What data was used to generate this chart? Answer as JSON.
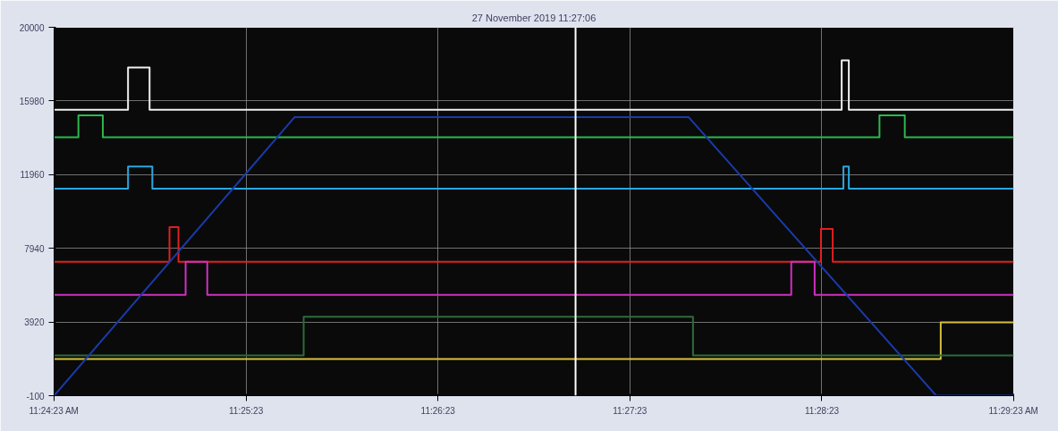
{
  "chart_data": {
    "type": "line",
    "title": "27 November 2019 11:27:06",
    "xlim": [
      11.40639,
      11.48972
    ],
    "xticks": [
      {
        "value": 11.40639,
        "label": "11:24:23 AM"
      },
      {
        "value": 11.42306,
        "label": "11:25:23"
      },
      {
        "value": 11.43972,
        "label": "11:26:23"
      },
      {
        "value": 11.45639,
        "label": "11:27:23"
      },
      {
        "value": 11.47306,
        "label": "11:28:23"
      },
      {
        "value": 11.48972,
        "label": "11:29:23 AM"
      }
    ],
    "ylim": [
      -100,
      20000
    ],
    "yticks": [
      -100,
      3920,
      7940,
      11960,
      15980,
      20000
    ],
    "grid": true,
    "line_style": "solid",
    "ref_lines": [
      {
        "axis": "x",
        "value": 11.45167,
        "label": null,
        "color": "#ffffff"
      }
    ],
    "series": [
      {
        "color": "#f0f0f0",
        "x": [
          11.40639,
          11.41281,
          11.41281,
          11.41468,
          11.41468,
          11.47478,
          11.47478,
          11.4754,
          11.4754,
          11.48972
        ],
        "values": [
          15500,
          15500,
          17800,
          17800,
          15500,
          15500,
          18200,
          18200,
          15500,
          15500
        ]
      },
      {
        "color": "#2db84d",
        "x": [
          11.40639,
          11.4085,
          11.4085,
          11.41062,
          11.41062,
          11.47806,
          11.47806,
          11.48026,
          11.48026,
          11.48972
        ],
        "values": [
          14000,
          14000,
          15200,
          15200,
          14000,
          14000,
          15200,
          15200,
          14000,
          14000
        ]
      },
      {
        "color": "#29a8e0",
        "x": [
          11.40639,
          11.41281,
          11.41281,
          11.41492,
          11.41492,
          11.47493,
          11.47493,
          11.4754,
          11.4754,
          11.48972
        ],
        "values": [
          11200,
          11200,
          12400,
          12400,
          11200,
          11200,
          12400,
          12400,
          11200,
          11200
        ]
      },
      {
        "color": "#e02020",
        "x": [
          11.40639,
          11.41641,
          11.41641,
          11.41719,
          11.41719,
          11.47298,
          11.47298,
          11.474,
          11.474,
          11.48972
        ],
        "values": [
          7200,
          7200,
          9100,
          9100,
          7200,
          7200,
          9000,
          9000,
          7200,
          7200
        ]
      },
      {
        "color": "#d030c0",
        "x": [
          11.40639,
          11.41781,
          11.41781,
          11.41969,
          11.41969,
          11.4704,
          11.4704,
          11.47243,
          11.47243,
          11.48972
        ],
        "values": [
          5400,
          5400,
          7200,
          7200,
          5400,
          5400,
          7200,
          7200,
          5400,
          5400
        ]
      },
      {
        "color": "#d8c040",
        "x": [
          11.40639,
          11.48338,
          11.48338,
          11.48972
        ],
        "values": [
          1900,
          1900,
          3900,
          3900
        ]
      },
      {
        "color": "#2e6b3a",
        "x": [
          11.40639,
          11.42806,
          11.42806,
          11.46187,
          11.46187,
          11.48972
        ],
        "values": [
          2100,
          2100,
          4200,
          4200,
          2100,
          2100
        ]
      },
      {
        "color": "#1a3aa8",
        "x": [
          11.40639,
          11.42728,
          11.46148,
          11.48299,
          11.48972
        ],
        "values": [
          -100,
          15100,
          15100,
          -100,
          -100
        ]
      }
    ]
  }
}
